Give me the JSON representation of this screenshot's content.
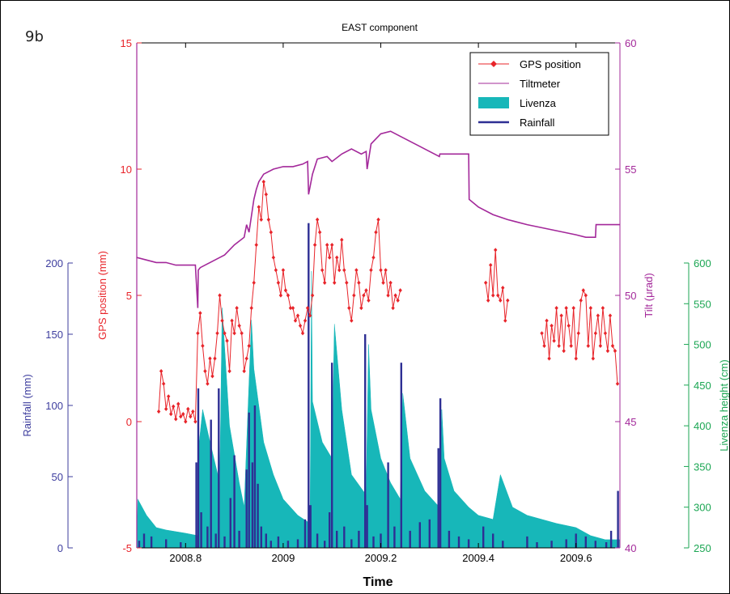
{
  "panel_label": "9b",
  "colors": {
    "gps": "#e8242a",
    "tilt": "#a3289a",
    "livenza": "#17b7b9",
    "rainfall": "#2e2f94",
    "livenza_axis": "#1ba653",
    "rain_axis": "#3d3d9e"
  },
  "chart_data": {
    "type": "line",
    "title": "EAST component",
    "xlabel": "Time",
    "xlim": [
      2008.7,
      2009.69
    ],
    "x_ticks": [
      2008.8,
      2009.0,
      2009.2,
      2009.4,
      2009.6
    ],
    "x_tick_labels": [
      "2008.8",
      "2009",
      "2009.2",
      "2009.4",
      "2009.6"
    ],
    "axes": {
      "gps": {
        "label": "GPS position (mm)",
        "lim": [
          -5,
          15
        ],
        "ticks": [
          -5,
          0,
          5,
          10,
          15
        ],
        "tick_labels": [
          "-5",
          "0",
          "5",
          "10",
          "15"
        ]
      },
      "tilt": {
        "label": "Tilt (μrad)",
        "lim": [
          40,
          60
        ],
        "ticks": [
          40,
          45,
          50,
          55,
          60
        ],
        "tick_labels": [
          "40",
          "45",
          "50",
          "55",
          "60"
        ]
      },
      "rainfall": {
        "label": "Rainfall (mm)",
        "lim": [
          0,
          200
        ],
        "ticks": [
          0,
          50,
          100,
          150,
          200
        ],
        "tick_labels": [
          "0",
          "50",
          "100",
          "150",
          "200"
        ]
      },
      "livenza": {
        "label": "Livenza height (cm)",
        "lim": [
          250,
          600
        ],
        "ticks": [
          250,
          300,
          350,
          400,
          450,
          500,
          550,
          600
        ],
        "tick_labels": [
          "250",
          "300",
          "350",
          "400",
          "450",
          "500",
          "550",
          "600"
        ]
      }
    },
    "legend": {
      "placement": "top-right",
      "entries": [
        "GPS position",
        "Tiltmeter",
        "Livenza",
        "Rainfall"
      ]
    },
    "series": [
      {
        "name": "GPS position",
        "axis": "gps",
        "kind": "line-markers",
        "segments": [
          {
            "x": [
              2008.745,
              2008.75,
              2008.755,
              2008.76,
              2008.765,
              2008.77,
              2008.775,
              2008.78,
              2008.785,
              2008.79,
              2008.795,
              2008.8,
              2008.805,
              2008.81,
              2008.815,
              2008.82,
              2008.825,
              2008.83,
              2008.835,
              2008.84,
              2008.845,
              2008.85,
              2008.855,
              2008.86,
              2008.865,
              2008.87,
              2008.875,
              2008.88,
              2008.885,
              2008.89,
              2008.895,
              2008.9,
              2008.905,
              2008.91,
              2008.915,
              2008.92,
              2008.925,
              2008.93,
              2008.935,
              2008.94,
              2008.945,
              2008.95,
              2008.955,
              2008.96,
              2008.965,
              2008.97,
              2008.975,
              2008.98,
              2008.985,
              2008.99,
              2008.995,
              2009.0,
              2009.005,
              2009.01,
              2009.015,
              2009.02,
              2009.025,
              2009.03,
              2009.035,
              2009.04,
              2009.045,
              2009.05,
              2009.055,
              2009.06,
              2009.065,
              2009.07,
              2009.075,
              2009.08,
              2009.085,
              2009.09,
              2009.095,
              2009.1,
              2009.105,
              2009.11,
              2009.115,
              2009.12,
              2009.125,
              2009.13,
              2009.135,
              2009.14,
              2009.145,
              2009.15,
              2009.155,
              2009.16,
              2009.165,
              2009.17,
              2009.175,
              2009.18,
              2009.185,
              2009.19,
              2009.195,
              2009.2,
              2009.205,
              2009.21,
              2009.215,
              2009.22,
              2009.225,
              2009.23,
              2009.235,
              2009.24
            ],
            "y": [
              0.4,
              2.0,
              1.5,
              0.5,
              1.0,
              0.3,
              0.6,
              0.1,
              0.7,
              0.2,
              0.3,
              0.0,
              0.5,
              0.2,
              0.4,
              0.0,
              3.5,
              4.3,
              3.0,
              2.0,
              1.5,
              2.5,
              1.8,
              2.5,
              3.5,
              5.0,
              4.0,
              3.5,
              3.2,
              2.0,
              4.0,
              3.5,
              4.5,
              3.8,
              3.5,
              2.0,
              2.5,
              3.0,
              4.5,
              5.5,
              7.0,
              8.5,
              8.0,
              9.5,
              9.0,
              8.0,
              7.5,
              6.5,
              6.0,
              5.5,
              5.0,
              6.0,
              5.2,
              5.0,
              4.5,
              4.5,
              4.0,
              4.2,
              3.8,
              3.5,
              4.0,
              4.5,
              4.2,
              5.0,
              7.0,
              8.0,
              7.5,
              6.0,
              5.5,
              7.0,
              6.5,
              7.0,
              5.5,
              6.5,
              6.0,
              7.2,
              6.0,
              5.5,
              4.5,
              4.0,
              5.0,
              6.0,
              5.5,
              4.5,
              5.0,
              5.2,
              4.8,
              6.0,
              6.5,
              7.5,
              8.0,
              6.0,
              5.5,
              6.0,
              5.0,
              5.5,
              4.5,
              5.0,
              4.8,
              5.2
            ]
          },
          {
            "x": [
              2009.415,
              2009.42,
              2009.425,
              2009.43,
              2009.435,
              2009.44,
              2009.445,
              2009.45,
              2009.455,
              2009.46
            ],
            "y": [
              5.5,
              4.8,
              6.2,
              5.0,
              6.8,
              5.0,
              4.8,
              5.3,
              4.0,
              4.8
            ]
          },
          {
            "x": [
              2009.53,
              2009.535,
              2009.54,
              2009.545,
              2009.55,
              2009.555,
              2009.56,
              2009.565,
              2009.57,
              2009.575,
              2009.58,
              2009.585,
              2009.59,
              2009.595,
              2009.6,
              2009.605,
              2009.61,
              2009.615,
              2009.62,
              2009.625,
              2009.63,
              2009.635,
              2009.64,
              2009.645,
              2009.65,
              2009.655,
              2009.66,
              2009.665,
              2009.67,
              2009.675,
              2009.68,
              2009.685
            ],
            "y": [
              3.5,
              3.0,
              4.0,
              2.5,
              3.8,
              3.2,
              4.5,
              3.0,
              4.2,
              2.8,
              4.5,
              3.8,
              3.0,
              4.5,
              2.5,
              3.5,
              4.8,
              5.2,
              5.0,
              3.0,
              4.5,
              2.5,
              3.5,
              4.2,
              3.0,
              4.5,
              3.5,
              2.8,
              4.2,
              3.0,
              2.8,
              1.5
            ]
          }
        ]
      },
      {
        "name": "Tiltmeter",
        "axis": "tilt",
        "kind": "line",
        "x": [
          2008.7,
          2008.72,
          2008.74,
          2008.76,
          2008.78,
          2008.8,
          2008.82,
          2008.825,
          2008.826,
          2008.83,
          2008.85,
          2008.87,
          2008.88,
          2008.9,
          2008.92,
          2008.925,
          2008.93,
          2008.94,
          2008.945,
          2008.95,
          2008.96,
          2008.98,
          2009.0,
          2009.02,
          2009.04,
          2009.05,
          2009.052,
          2009.06,
          2009.07,
          2009.09,
          2009.1,
          2009.12,
          2009.14,
          2009.16,
          2009.17,
          2009.172,
          2009.18,
          2009.2,
          2009.22,
          2009.24,
          2009.26,
          2009.28,
          2009.3,
          2009.32,
          2009.321,
          2009.34,
          2009.36,
          2009.38,
          2009.381,
          2009.4,
          2009.43,
          2009.46,
          2009.5,
          2009.55,
          2009.6,
          2009.62,
          2009.64,
          2009.641,
          2009.66,
          2009.69
        ],
        "y": [
          51.5,
          51.4,
          51.3,
          51.3,
          51.2,
          51.2,
          51.2,
          49.5,
          51.0,
          51.1,
          51.3,
          51.5,
          51.6,
          52.0,
          52.3,
          52.8,
          52.5,
          53.8,
          54.2,
          54.5,
          54.8,
          55.0,
          55.1,
          55.1,
          55.2,
          55.3,
          54.0,
          54.8,
          55.4,
          55.5,
          55.3,
          55.6,
          55.8,
          55.6,
          55.7,
          55.0,
          56.0,
          56.4,
          56.5,
          56.3,
          56.1,
          55.9,
          55.7,
          55.5,
          55.6,
          55.6,
          55.6,
          55.6,
          53.8,
          53.5,
          53.2,
          53.0,
          52.8,
          52.6,
          52.4,
          52.3,
          52.3,
          52.8,
          52.8,
          52.8
        ]
      },
      {
        "name": "Livenza",
        "axis": "livenza",
        "kind": "area",
        "baseline": 250,
        "x": [
          2008.7,
          2008.702,
          2008.72,
          2008.74,
          2008.76,
          2008.78,
          2008.8,
          2008.825,
          2008.828,
          2008.835,
          2008.85,
          2008.87,
          2008.875,
          2008.89,
          2008.91,
          2008.92,
          2008.935,
          2008.94,
          2008.96,
          2008.98,
          2009.0,
          2009.03,
          2009.055,
          2009.058,
          2009.06,
          2009.08,
          2009.1,
          2009.105,
          2009.12,
          2009.14,
          2009.17,
          2009.175,
          2009.18,
          2009.2,
          2009.22,
          2009.24,
          2009.245,
          2009.26,
          2009.29,
          2009.32,
          2009.325,
          2009.33,
          2009.35,
          2009.38,
          2009.4,
          2009.43,
          2009.445,
          2009.47,
          2009.5,
          2009.53,
          2009.56,
          2009.6,
          2009.63,
          2009.66,
          2009.69
        ],
        "y": [
          250,
          310,
          290,
          275,
          272,
          270,
          268,
          265,
          380,
          420,
          380,
          330,
          545,
          400,
          330,
          300,
          530,
          470,
          380,
          340,
          310,
          290,
          280,
          590,
          430,
          380,
          360,
          525,
          420,
          340,
          315,
          500,
          420,
          360,
          330,
          310,
          440,
          360,
          320,
          300,
          420,
          360,
          320,
          300,
          290,
          285,
          340,
          300,
          290,
          285,
          280,
          275,
          265,
          260,
          260
        ]
      },
      {
        "name": "Rainfall",
        "axis": "rainfall",
        "kind": "bar",
        "x": [
          2008.705,
          2008.715,
          2008.73,
          2008.76,
          2008.79,
          2008.822,
          2008.826,
          2008.832,
          2008.845,
          2008.852,
          2008.862,
          2008.868,
          2008.88,
          2008.892,
          2008.9,
          2008.91,
          2008.925,
          2008.93,
          2008.937,
          2008.942,
          2008.948,
          2008.955,
          2008.965,
          2008.975,
          2008.99,
          2009.01,
          2009.03,
          2009.045,
          2009.052,
          2009.056,
          2009.07,
          2009.085,
          2009.095,
          2009.1,
          2009.11,
          2009.125,
          2009.14,
          2009.155,
          2009.168,
          2009.172,
          2009.185,
          2009.2,
          2009.215,
          2009.228,
          2009.242,
          2009.26,
          2009.28,
          2009.3,
          2009.318,
          2009.322,
          2009.34,
          2009.36,
          2009.38,
          2009.41,
          2009.43,
          2009.45,
          2009.5,
          2009.52,
          2009.55,
          2009.58,
          2009.6,
          2009.62,
          2009.64,
          2009.662,
          2009.672,
          2009.686
        ],
        "y": [
          5,
          10,
          8,
          6,
          4,
          60,
          112,
          25,
          15,
          90,
          10,
          112,
          8,
          35,
          65,
          12,
          55,
          95,
          60,
          100,
          45,
          15,
          10,
          5,
          8,
          5,
          6,
          20,
          228,
          30,
          10,
          5,
          25,
          130,
          12,
          15,
          6,
          12,
          150,
          30,
          8,
          10,
          60,
          15,
          130,
          12,
          18,
          20,
          70,
          105,
          12,
          8,
          6,
          15,
          10,
          5,
          8,
          4,
          5,
          6,
          10,
          8,
          5,
          4,
          12,
          40
        ]
      }
    ]
  }
}
